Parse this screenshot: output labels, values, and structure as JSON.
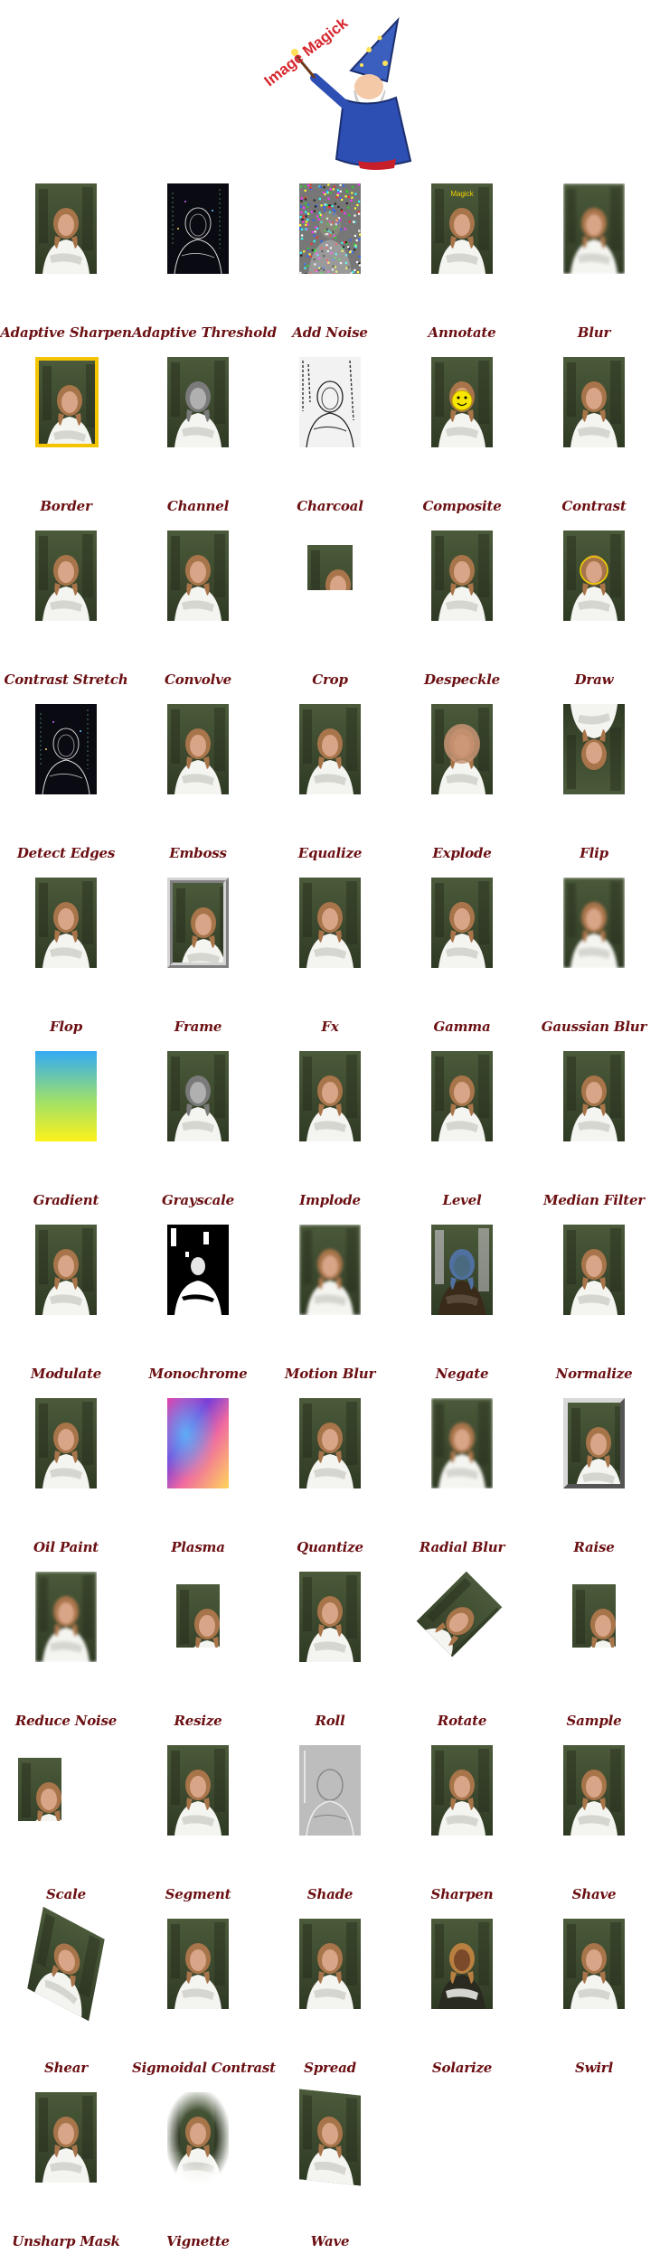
{
  "logo": {
    "text": "Image Magick",
    "icon": "wizard-icon"
  },
  "effects": [
    {
      "label": "Adaptive Sharpen",
      "style": "photo"
    },
    {
      "label": "Adaptive Threshold",
      "style": "edges-dark"
    },
    {
      "label": "Add Noise",
      "style": "noise"
    },
    {
      "label": "Annotate",
      "style": "annotate",
      "overlay_text": "Magick"
    },
    {
      "label": "Blur",
      "style": "blur"
    },
    {
      "label": "Border",
      "style": "border"
    },
    {
      "label": "Channel",
      "style": "gray"
    },
    {
      "label": "Charcoal",
      "style": "charcoal"
    },
    {
      "label": "Composite",
      "style": "composite"
    },
    {
      "label": "Contrast",
      "style": "photo"
    },
    {
      "label": "Contrast Stretch",
      "style": "photo"
    },
    {
      "label": "Convolve",
      "style": "photo"
    },
    {
      "label": "Crop",
      "style": "crop"
    },
    {
      "label": "Despeckle",
      "style": "photo"
    },
    {
      "label": "Draw",
      "style": "draw"
    },
    {
      "label": "Detect Edges",
      "style": "edges-dark"
    },
    {
      "label": "Emboss",
      "style": "photo"
    },
    {
      "label": "Equalize",
      "style": "equalize"
    },
    {
      "label": "Explode",
      "style": "explode"
    },
    {
      "label": "Flip",
      "style": "flip"
    },
    {
      "label": "Flop",
      "style": "photo"
    },
    {
      "label": "Frame",
      "style": "frame"
    },
    {
      "label": "Fx",
      "style": "dark"
    },
    {
      "label": "Gamma",
      "style": "light"
    },
    {
      "label": "Gaussian Blur",
      "style": "blur"
    },
    {
      "label": "Gradient",
      "style": "gradient"
    },
    {
      "label": "Grayscale",
      "style": "gray"
    },
    {
      "label": "Implode",
      "style": "photo"
    },
    {
      "label": "Level",
      "style": "photo"
    },
    {
      "label": "Median Filter",
      "style": "photo"
    },
    {
      "label": "Modulate",
      "style": "photo"
    },
    {
      "label": "Monochrome",
      "style": "mono"
    },
    {
      "label": "Motion Blur",
      "style": "blur"
    },
    {
      "label": "Negate",
      "style": "negate"
    },
    {
      "label": "Normalize",
      "style": "dark"
    },
    {
      "label": "Oil Paint",
      "style": "photo"
    },
    {
      "label": "Plasma",
      "style": "plasma"
    },
    {
      "label": "Quantize",
      "style": "photo"
    },
    {
      "label": "Radial Blur",
      "style": "blur"
    },
    {
      "label": "Raise",
      "style": "raise"
    },
    {
      "label": "Reduce Noise",
      "style": "blur"
    },
    {
      "label": "Resize",
      "style": "resize"
    },
    {
      "label": "Roll",
      "style": "photo"
    },
    {
      "label": "Rotate",
      "style": "rotate"
    },
    {
      "label": "Sample",
      "style": "resize"
    },
    {
      "label": "Scale",
      "style": "scale"
    },
    {
      "label": "Segment",
      "style": "photo"
    },
    {
      "label": "Shade",
      "style": "shade"
    },
    {
      "label": "Sharpen",
      "style": "photo"
    },
    {
      "label": "Shave",
      "style": "photo"
    },
    {
      "label": "Shear",
      "style": "shear"
    },
    {
      "label": "Sigmoidal Contrast",
      "style": "photo"
    },
    {
      "label": "Spread",
      "style": "photo"
    },
    {
      "label": "Solarize",
      "style": "solarize"
    },
    {
      "label": "Swirl",
      "style": "photo"
    },
    {
      "label": "Unsharp Mask",
      "style": "photo"
    },
    {
      "label": "Vignette",
      "style": "vignette"
    },
    {
      "label": "Wave",
      "style": "wave"
    }
  ]
}
